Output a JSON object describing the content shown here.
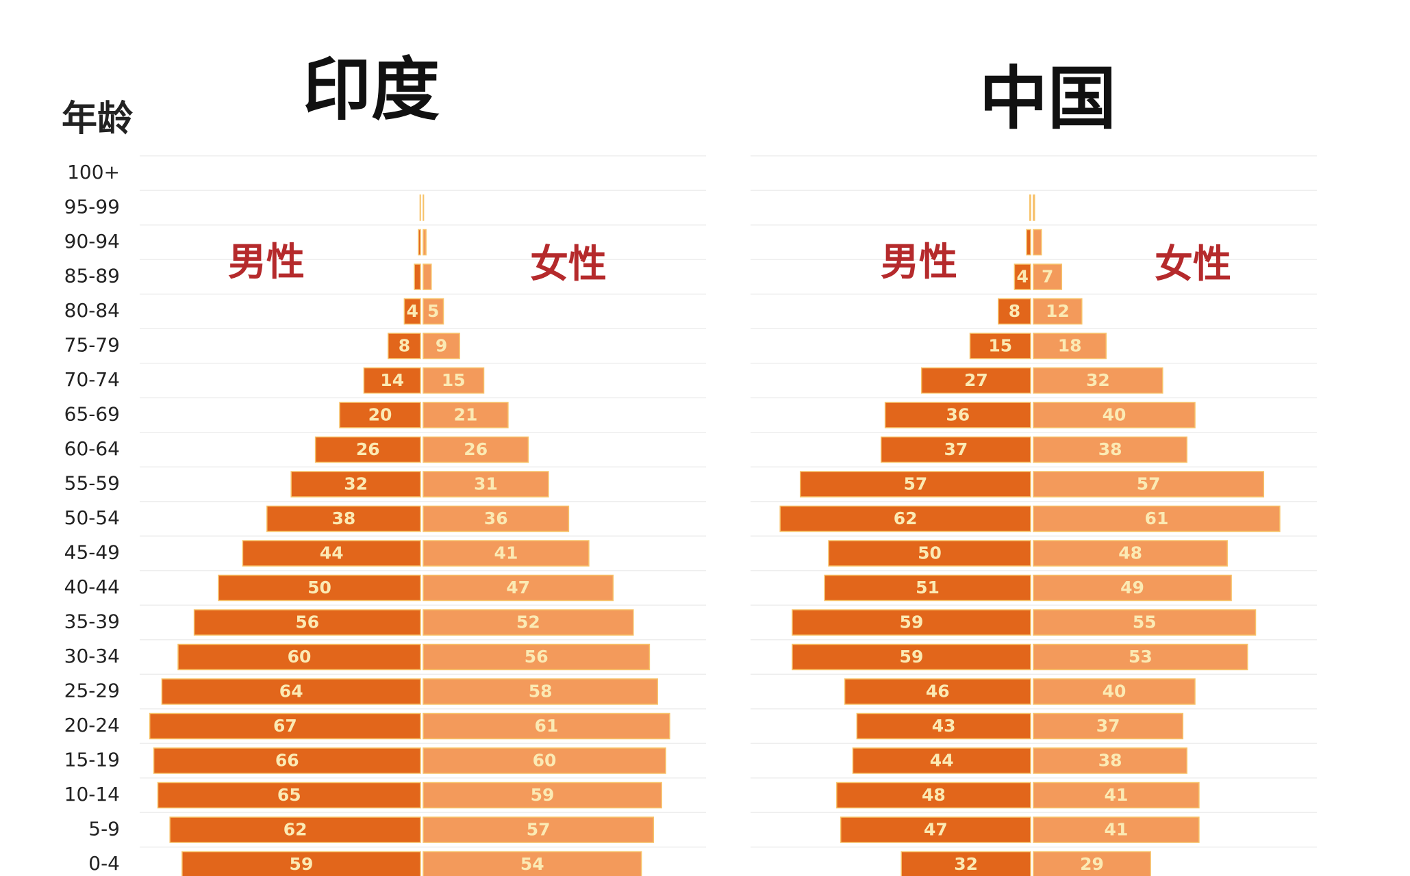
{
  "chart_data": {
    "type": "pyramid",
    "y_label": "年龄",
    "grid": true,
    "categories": [
      "100+",
      "95-99",
      "90-94",
      "85-89",
      "80-84",
      "75-79",
      "70-74",
      "65-69",
      "60-64",
      "55-59",
      "50-54",
      "45-49",
      "40-44",
      "35-39",
      "30-34",
      "25-29",
      "20-24",
      "15-19",
      "10-14",
      "5-9",
      "0-4"
    ],
    "panels": [
      {
        "title": "印度",
        "series": [
          {
            "name": "男性",
            "color": "#e2661b",
            "values": [
              0,
              0.1,
              0.5,
              1.5,
              4,
              8,
              14,
              20,
              26,
              32,
              38,
              44,
              50,
              56,
              60,
              64,
              67,
              66,
              65,
              62,
              59
            ],
            "value_labels": [
              null,
              null,
              null,
              null,
              "4",
              "8",
              "14",
              "20",
              "26",
              "32",
              "38",
              "44",
              "50",
              "56",
              "60",
              "64",
              "67",
              "66",
              "65",
              "62",
              "59"
            ]
          },
          {
            "name": "女性",
            "color": "#f39a5b",
            "values": [
              0,
              0.1,
              0.7,
              2,
              5,
              9,
              15,
              21,
              26,
              31,
              36,
              41,
              47,
              52,
              56,
              58,
              61,
              60,
              59,
              57,
              54
            ],
            "value_labels": [
              null,
              null,
              null,
              null,
              "5",
              "9",
              "15",
              "21",
              "26",
              "31",
              "36",
              "41",
              "47",
              "52",
              "56",
              "58",
              "61",
              "60",
              "59",
              "57",
              "54"
            ]
          }
        ]
      },
      {
        "title": "中国",
        "series": [
          {
            "name": "男性",
            "color": "#e2661b",
            "values": [
              0,
              0.2,
              1,
              4,
              8,
              15,
              27,
              36,
              37,
              57,
              62,
              50,
              51,
              59,
              59,
              46,
              43,
              44,
              48,
              47,
              32
            ],
            "value_labels": [
              null,
              null,
              null,
              "4",
              "8",
              "15",
              "27",
              "36",
              "37",
              "57",
              "62",
              "50",
              "51",
              "59",
              "59",
              "46",
              "43",
              "44",
              "48",
              "47",
              "32"
            ]
          },
          {
            "name": "女性",
            "color": "#f39a5b",
            "values": [
              0,
              0.3,
              2,
              7,
              12,
              18,
              32,
              40,
              38,
              57,
              61,
              48,
              49,
              55,
              53,
              40,
              37,
              38,
              41,
              41,
              29
            ],
            "value_labels": [
              null,
              null,
              null,
              "7",
              "12",
              "18",
              "32",
              "40",
              "38",
              "57",
              "61",
              "48",
              "49",
              "55",
              "53",
              "40",
              "37",
              "38",
              "41",
              "41",
              "29"
            ]
          }
        ]
      }
    ]
  }
}
